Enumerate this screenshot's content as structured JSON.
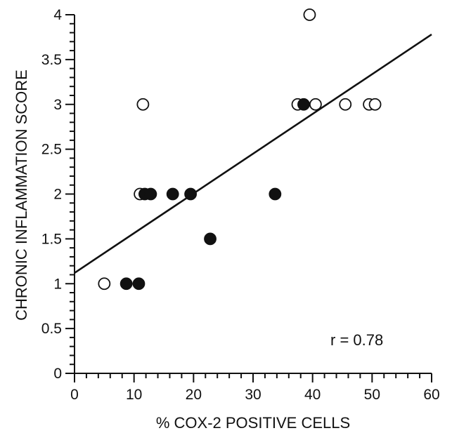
{
  "chart_data": {
    "type": "scatter",
    "title": "",
    "xlabel": "% COX-2 POSITIVE CELLS",
    "ylabel": "CHRONIC INFLAMMATION SCORE",
    "xlim": [
      0,
      60
    ],
    "ylim": [
      0,
      4
    ],
    "x_ticks": [
      0,
      10,
      20,
      30,
      40,
      50,
      60
    ],
    "x_tick_labels": [
      "0",
      "10",
      "20",
      "30",
      "40",
      "50",
      "60"
    ],
    "y_ticks": [
      0,
      0.5,
      1,
      1.5,
      2,
      2.5,
      3,
      3.5,
      4
    ],
    "y_tick_labels": [
      "0",
      "0.5",
      "1",
      "1.5",
      "2",
      "2.5",
      "3",
      "3.5",
      "4"
    ],
    "grid": false,
    "legend": "none",
    "series": [
      {
        "marker": "open-circle",
        "x": [
          5,
          11.5,
          11,
          37.5,
          39.5,
          40.5,
          45.5,
          49.5,
          50.5
        ],
        "y": [
          1,
          3,
          2,
          3,
          4,
          3,
          3,
          3,
          3
        ]
      },
      {
        "marker": "filled-circle",
        "x": [
          8.7,
          10.8,
          11.8,
          12.8,
          16.5,
          19.5,
          22.8,
          33.7,
          38.5
        ],
        "y": [
          1,
          1,
          2,
          2,
          2,
          2,
          1.5,
          2,
          3
        ]
      }
    ],
    "trendline": {
      "x": [
        0,
        60
      ],
      "y": [
        1.12,
        3.78
      ]
    },
    "annotations": [
      {
        "text": "r = 0.78"
      }
    ],
    "colors": {
      "axis": "#111111",
      "marker": "#111111",
      "background": "#ffffff"
    }
  }
}
